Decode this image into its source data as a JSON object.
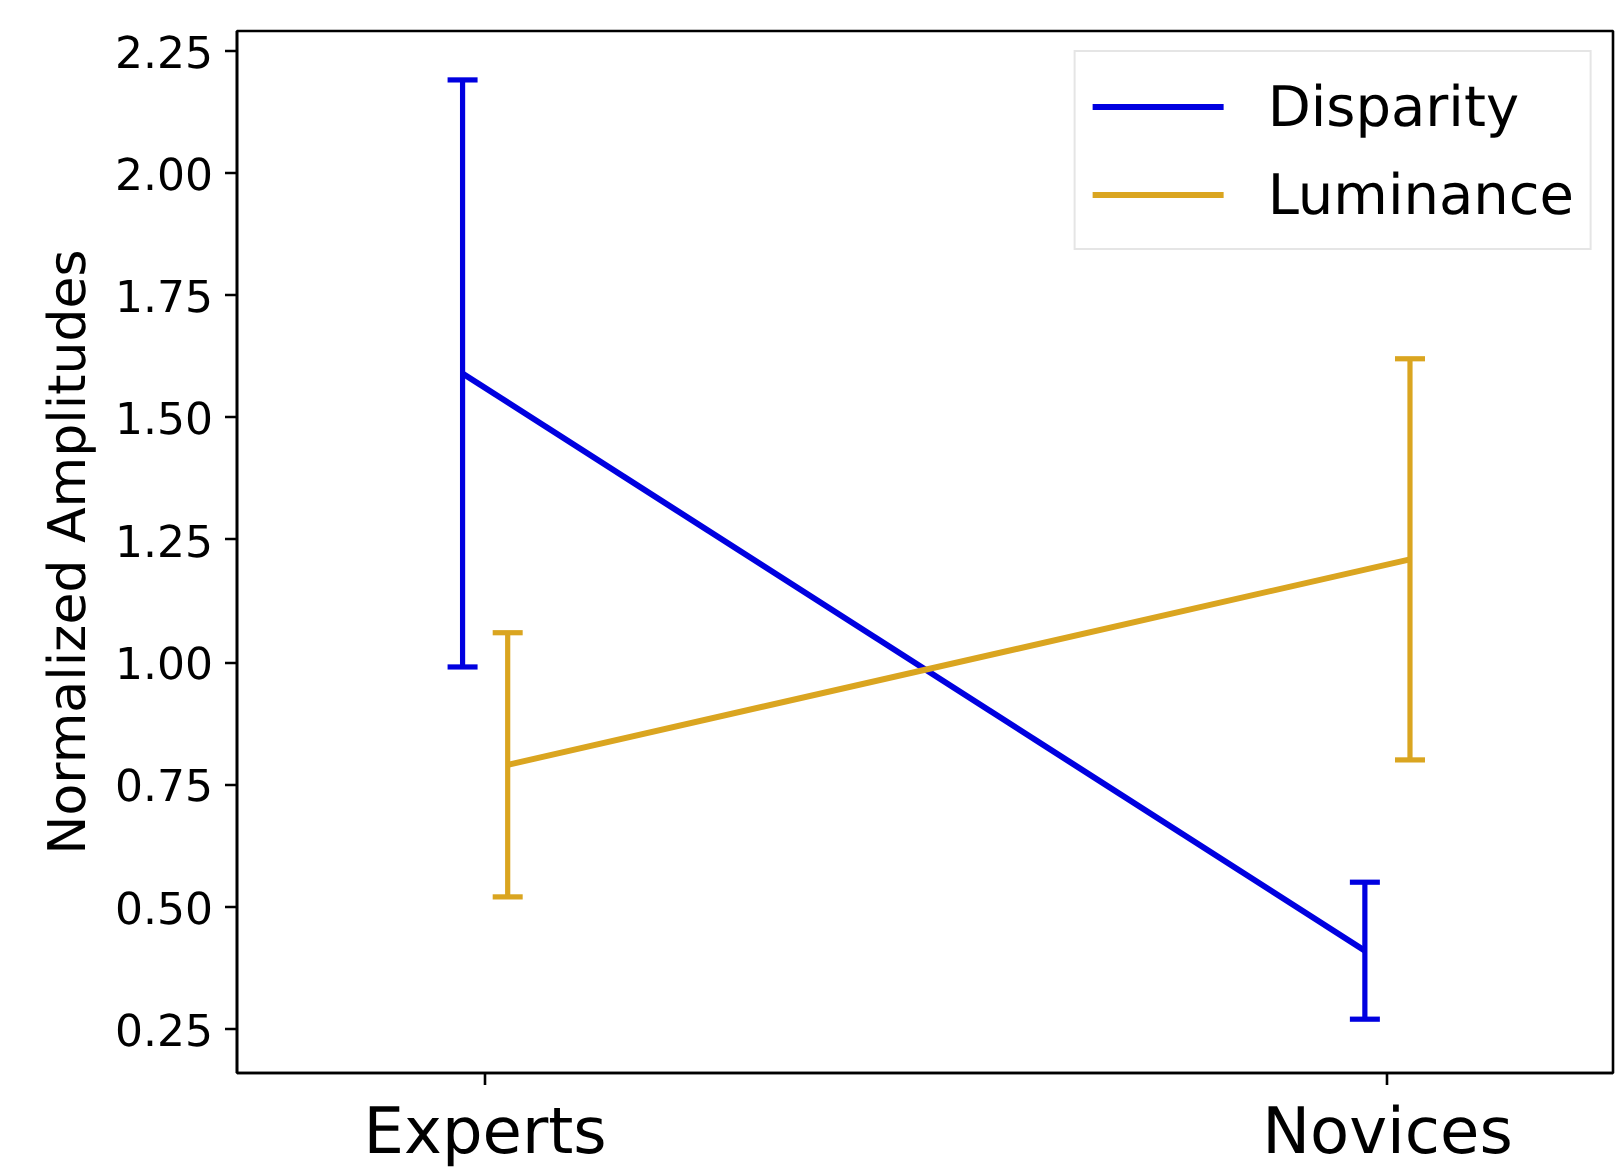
{
  "chart_data": {
    "type": "line",
    "ylabel": "Normalized Amplitudes",
    "categories": [
      "Experts",
      "Novices"
    ],
    "ylim": [
      0.16,
      2.29
    ],
    "yticks": [
      {
        "value": 0.25,
        "label": "0.25"
      },
      {
        "value": 0.5,
        "label": "0.50"
      },
      {
        "value": 0.75,
        "label": "0.75"
      },
      {
        "value": 1,
        "label": "1.00"
      },
      {
        "value": 1.25,
        "label": "1.25"
      },
      {
        "value": 1.5,
        "label": "1.50"
      },
      {
        "value": 1.75,
        "label": "1.75"
      },
      {
        "value": 2,
        "label": "2.00"
      },
      {
        "value": 2.25,
        "label": "2.25"
      }
    ],
    "legend": "top right",
    "series": [
      {
        "name": "Disparity",
        "color": "#0000e0",
        "values": [
          1.59,
          0.41
        ],
        "errors": [
          0.6,
          0.14
        ]
      },
      {
        "name": "Luminance",
        "color": "#daa520",
        "values": [
          0.79,
          1.21
        ],
        "errors": [
          0.27,
          0.41
        ]
      }
    ]
  }
}
